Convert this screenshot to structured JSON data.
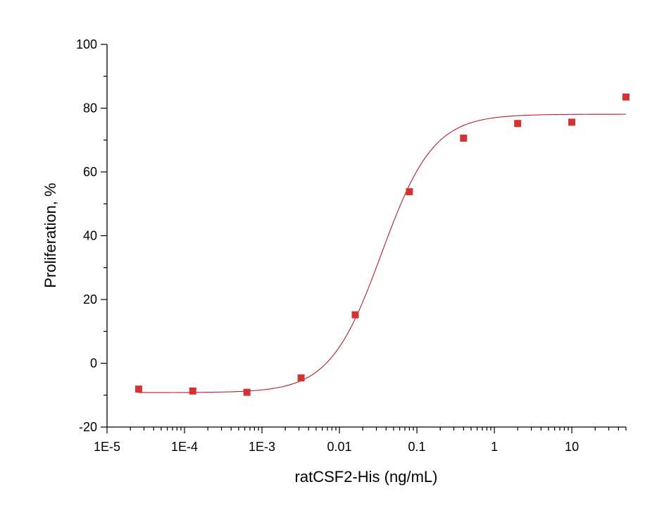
{
  "chart_data": {
    "type": "scatter",
    "xscale": "log",
    "xlabel": "ratCSF2-His (ng/mL)",
    "ylabel": "Proliferation, %",
    "xlim": [
      1e-05,
      50
    ],
    "ylim": [
      -20,
      100
    ],
    "x_tick_labels": [
      "1E-5",
      "1E-4",
      "1E-3",
      "0.01",
      "0.1",
      "1",
      "10"
    ],
    "y_tick_labels": [
      "-20",
      "0",
      "20",
      "40",
      "60",
      "80",
      "100"
    ],
    "grid": false,
    "legend": "none",
    "series": [
      {
        "marker": "square",
        "color": "#d23434",
        "points": [
          {
            "x": 2.56e-05,
            "y": -8.1
          },
          {
            "x": 0.000128,
            "y": -8.7
          },
          {
            "x": 0.00064,
            "y": -9.1
          },
          {
            "x": 0.0032,
            "y": -4.6
          },
          {
            "x": 0.016,
            "y": 15.2
          },
          {
            "x": 0.08,
            "y": 53.8
          },
          {
            "x": 0.4,
            "y": 70.6
          },
          {
            "x": 2,
            "y": 75.2
          },
          {
            "x": 10,
            "y": 75.6
          },
          {
            "x": 50,
            "y": 83.5
          }
        ]
      }
    ],
    "fit_curve": {
      "type": "4PL",
      "color": "#b51e2a",
      "bottom": -9.2,
      "top": 78.1,
      "ec50": 0.035,
      "hill": 1.3,
      "x_range": [
        2.56e-05,
        50
      ]
    }
  }
}
